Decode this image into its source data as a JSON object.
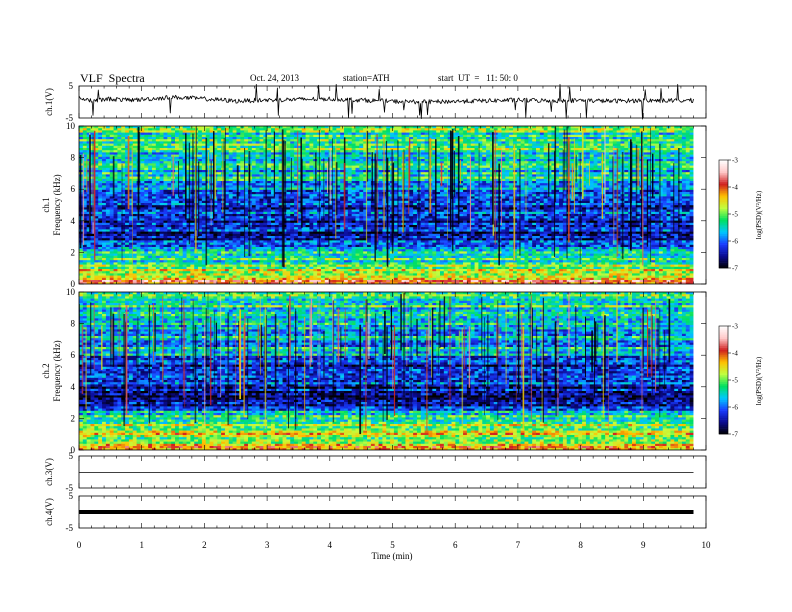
{
  "header": {
    "title": "VLF  Spectra",
    "date": "Oct. 24, 2013",
    "station": "station=ATH",
    "start": "start  UT  =   11: 50: 0"
  },
  "panels": {
    "ch1_waveform": {
      "ylabel": "ch.1(V)",
      "ylim": [
        -5,
        5
      ],
      "ticks": [
        "5",
        "-5"
      ]
    },
    "ch1_spectrogram": {
      "ylabel_top": "ch.1",
      "ylabel": "Frequency  (kHz)",
      "ylim": [
        0,
        10
      ],
      "ticks": [
        "0",
        "2",
        "4",
        "6",
        "8",
        "10"
      ]
    },
    "ch2_spectrogram": {
      "ylabel_top": "ch.2",
      "ylabel": "Frequency  (kHz)",
      "ylim": [
        0,
        10
      ],
      "ticks": [
        "0",
        "2",
        "4",
        "6",
        "8",
        "10"
      ]
    },
    "ch3_waveform": {
      "ylabel": "ch.3(V)",
      "ylim": [
        -5,
        5
      ],
      "ticks": [
        "5",
        "-5"
      ]
    },
    "ch4_waveform": {
      "ylabel": "ch.4(V)",
      "ylim": [
        -5,
        5
      ],
      "ticks": [
        "5",
        "-5"
      ]
    }
  },
  "colorbar": {
    "label": "log(PSD)(V²/Hz)",
    "ticks": [
      "-3",
      "-4",
      "-5",
      "-6",
      "-7"
    ],
    "range": [
      -7,
      -3
    ],
    "colors": [
      "#000000",
      "#0a0a90",
      "#1a3cff",
      "#00c8ff",
      "#00e060",
      "#c0ff40",
      "#ffc000",
      "#d02020",
      "#ffc8c8",
      "#ffffff"
    ]
  },
  "chart_data": [
    {
      "type": "line",
      "title": "VLF  Spectra",
      "xlabel": "Time  (min)",
      "xlim": [
        0,
        10
      ],
      "ylabel": "ch.1(V)",
      "ylim": [
        -5,
        5
      ],
      "x_ticks": [
        "0",
        "1",
        "2",
        "3",
        "4",
        "5",
        "6",
        "7",
        "8",
        "9",
        "10"
      ],
      "data_end_min": 9.8,
      "series": [
        {
          "x": [
            0,
            0.25,
            0.5,
            0.75,
            1,
            1.5,
            2,
            2.5,
            3,
            3.5,
            4,
            4.5,
            5,
            5.5,
            6,
            6.5,
            7,
            7.5,
            8,
            8.5,
            9,
            9.5,
            9.8
          ],
          "y": [
            1.2,
            0.4,
            1.0,
            0.6,
            0.8,
            1.5,
            1.0,
            0.3,
            0.6,
            0.8,
            1.0,
            0.6,
            0.2,
            0.0,
            0.2,
            0.4,
            0.6,
            0.4,
            0.5,
            0.3,
            0.5,
            0.4,
            0.5
          ]
        }
      ]
    },
    {
      "type": "heatmap",
      "ylabel": "Frequency  (kHz)",
      "xlim": [
        0,
        10
      ],
      "ylim": [
        0,
        10
      ],
      "zlabel": "log(PSD)(V²/Hz)",
      "zlim": [
        -7,
        -3
      ],
      "data_end_min": 9.8,
      "mean_log_psd_by_band": {
        "freq_khz": [
          0.25,
          0.75,
          1.25,
          1.75,
          2.25,
          2.75,
          3.25,
          3.75,
          4.25,
          4.75,
          5.25,
          5.75,
          6.5,
          7.5,
          8.5,
          9.5
        ],
        "log_psd": [
          -3.8,
          -4.6,
          -5.2,
          -5.3,
          -5.8,
          -6.3,
          -6.4,
          -6.5,
          -6.4,
          -6.2,
          -6.5,
          -5.8,
          -5.5,
          -5.5,
          -5.3,
          -5.2
        ]
      }
    },
    {
      "type": "heatmap",
      "ylabel": "Frequency  (kHz)",
      "xlim": [
        0,
        10
      ],
      "ylim": [
        0,
        10
      ],
      "zlabel": "log(PSD)(V²/Hz)",
      "zlim": [
        -7,
        -3
      ],
      "data_end_min": 9.8,
      "mean_log_psd_by_band": {
        "freq_khz": [
          0.25,
          0.75,
          1.25,
          1.75,
          2.25,
          2.75,
          3.25,
          3.75,
          4.25,
          4.75,
          5.25,
          5.75,
          6.5,
          7.5,
          8.5,
          9.5
        ],
        "log_psd": [
          -4.2,
          -4.8,
          -4.8,
          -5.0,
          -5.2,
          -6.3,
          -6.3,
          -6.4,
          -6.2,
          -6.2,
          -6.4,
          -5.9,
          -5.6,
          -5.5,
          -5.4,
          -5.3
        ]
      }
    },
    {
      "type": "line",
      "ylabel": "ch.3(V)",
      "xlim": [
        0,
        10
      ],
      "ylim": [
        -5,
        5
      ],
      "data_end_min": 9.8,
      "series": [
        {
          "x": [
            0,
            9.8
          ],
          "y": [
            -0.2,
            -0.2
          ]
        }
      ]
    },
    {
      "type": "line",
      "ylabel": "ch.4(V)",
      "xlim": [
        0,
        10
      ],
      "ylim": [
        -5,
        5
      ],
      "data_end_min": 9.8,
      "series": [
        {
          "x": [
            0,
            9.8
          ],
          "y": [
            0.0,
            0.0
          ]
        }
      ]
    }
  ]
}
